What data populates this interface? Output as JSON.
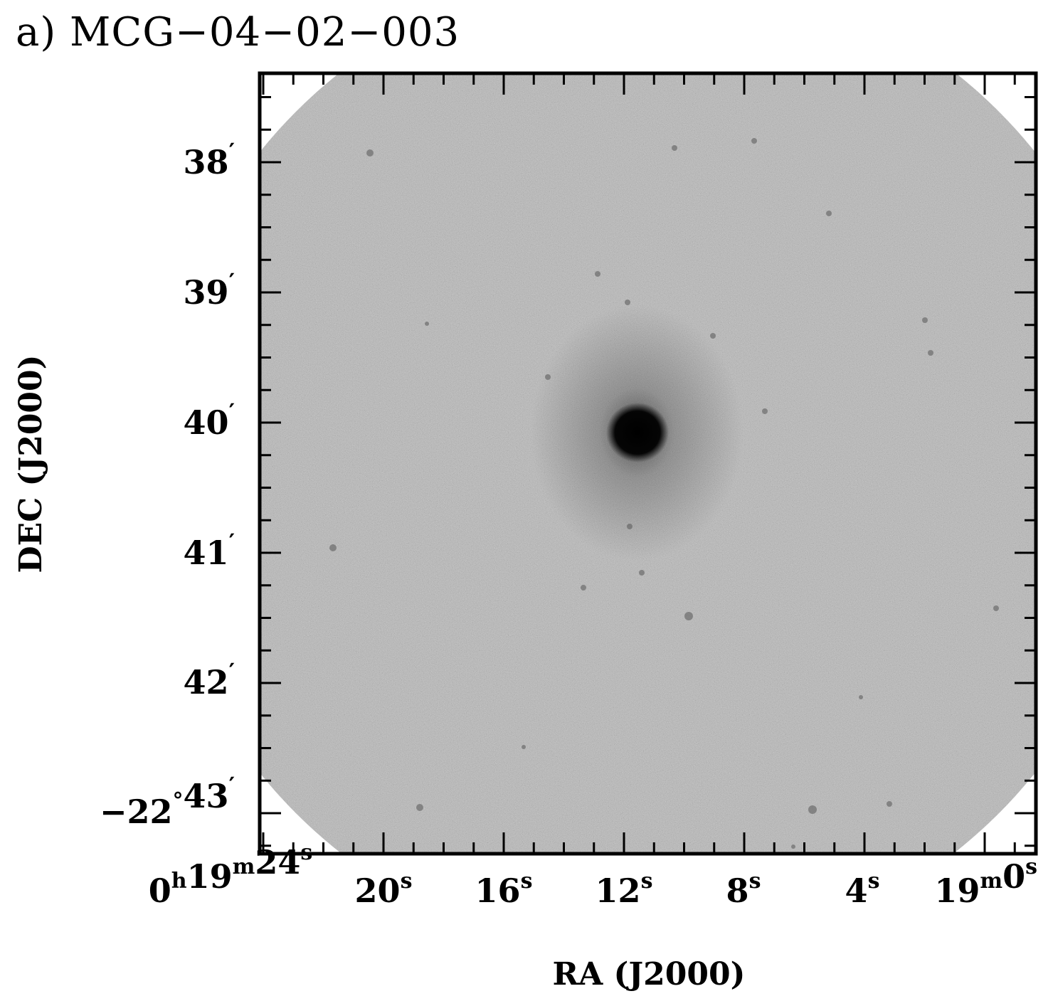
{
  "figure": {
    "panel_label": "a)",
    "object_name": "MCG−04−02−003",
    "image_kind": "grayscale sky image, circular field of view",
    "colors": {
      "frame": "#000000",
      "sky_mid": "#b9b9b9",
      "source": "#050505",
      "background": "#ffffff"
    }
  },
  "axes": {
    "x": {
      "label": "RA (J2000)",
      "ticks": [
        {
          "h": "0",
          "m": "19",
          "s": "24"
        },
        {
          "s": "20"
        },
        {
          "s": "16"
        },
        {
          "s": "12"
        },
        {
          "s": "8"
        },
        {
          "s": "4"
        },
        {
          "m": "19",
          "s": "0"
        }
      ],
      "unit_h": "h",
      "unit_m": "m",
      "unit_s": "s"
    },
    "y": {
      "label": "DEC (J2000)",
      "ticks": [
        {
          "value": "38"
        },
        {
          "value": "39"
        },
        {
          "value": "40"
        },
        {
          "value": "41"
        },
        {
          "value": "42"
        },
        {
          "deg": "−22",
          "value": "43"
        }
      ],
      "unit_arcmin": "′",
      "unit_deg": "°"
    }
  }
}
